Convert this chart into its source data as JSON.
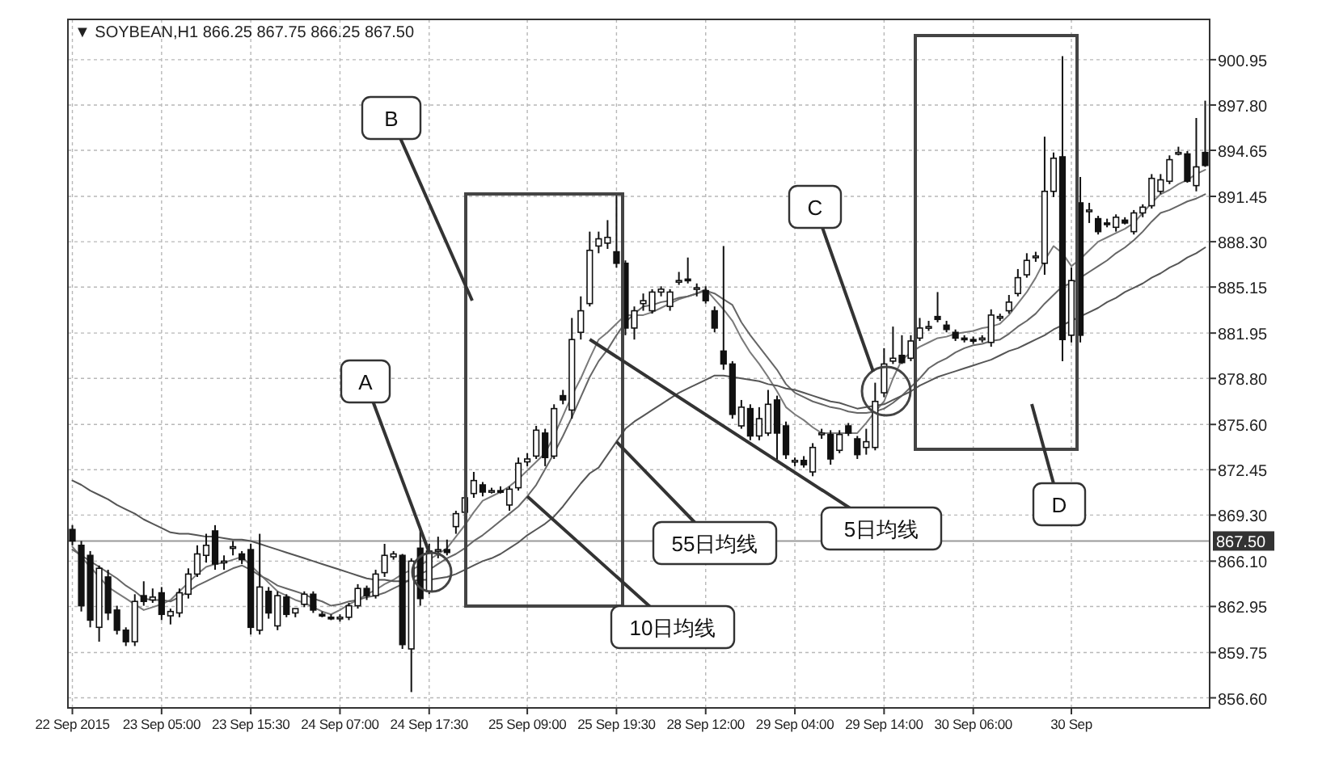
{
  "chart_data": {
    "type": "candlestick",
    "title": "▼ SOYBEAN,H1 866.25 867.75 866.25 867.50",
    "color": "#111111",
    "categories": [
      "22 Sep 2015",
      null,
      null,
      null,
      null,
      null,
      null,
      null,
      null,
      null,
      "23 Sep 05:00",
      null,
      null,
      null,
      null,
      null,
      null,
      null,
      null,
      null,
      "23 Sep 15:30",
      null,
      null,
      null,
      null,
      null,
      null,
      null,
      null,
      null,
      "24 Sep 07:00",
      null,
      null,
      null,
      null,
      null,
      null,
      null,
      null,
      null,
      "24 Sep 17:30",
      null,
      null,
      null,
      null,
      null,
      null,
      null,
      null,
      null,
      null,
      "25 Sep 09:00",
      null,
      null,
      null,
      null,
      null,
      null,
      null,
      null,
      null,
      "25 Sep 19:30",
      null,
      null,
      null,
      null,
      null,
      null,
      null,
      null,
      null,
      "28 Sep 12:00",
      null,
      null,
      null,
      null,
      null,
      null,
      null,
      null,
      null,
      "29 Sep 04:00",
      null,
      null,
      null,
      null,
      null,
      null,
      null,
      null,
      null,
      "29 Sep 14:00",
      null,
      null,
      null,
      null,
      null,
      null,
      null,
      null,
      null,
      "30 Sep 06:00",
      null,
      null,
      null,
      null,
      null,
      null,
      null,
      null,
      null,
      null,
      "30 Sep",
      null,
      null,
      null,
      null,
      null,
      null,
      null,
      null,
      null,
      null,
      null,
      null,
      null,
      null,
      null
    ],
    "ohlc": [
      [
        868.3,
        868.6,
        867.2,
        867.5
      ],
      [
        867.2,
        867.5,
        862.6,
        863.0
      ],
      [
        866.5,
        866.8,
        861.5,
        862.0
      ],
      [
        861.5,
        865.8,
        860.5,
        865.6
      ],
      [
        865.0,
        865.5,
        862.0,
        862.5
      ],
      [
        862.7,
        863.0,
        861.0,
        861.3
      ],
      [
        861.3,
        861.5,
        860.2,
        860.5
      ],
      [
        860.5,
        863.8,
        860.2,
        863.3
      ],
      [
        863.7,
        864.7,
        863.0,
        863.3
      ],
      [
        863.4,
        864.2,
        863.2,
        863.6
      ],
      [
        863.9,
        864.3,
        862.0,
        862.4
      ],
      [
        862.3,
        862.8,
        861.7,
        862.6
      ],
      [
        862.5,
        864.2,
        862.2,
        863.9
      ],
      [
        863.8,
        865.6,
        863.5,
        865.2
      ],
      [
        865.2,
        867.2,
        865.0,
        866.6
      ],
      [
        866.5,
        868.0,
        866.0,
        867.2
      ],
      [
        868.2,
        868.6,
        865.5,
        865.9
      ],
      [
        866.0,
        866.5,
        865.5,
        866.1
      ],
      [
        867.0,
        867.5,
        866.5,
        867.1
      ],
      [
        866.6,
        866.8,
        865.9,
        866.2
      ],
      [
        866.9,
        867.3,
        861.0,
        861.5
      ],
      [
        861.3,
        868.0,
        861.0,
        864.3
      ],
      [
        864.0,
        864.3,
        862.1,
        862.5
      ],
      [
        861.6,
        864.0,
        861.3,
        863.7
      ],
      [
        863.6,
        863.8,
        862.2,
        862.4
      ],
      [
        862.5,
        862.8,
        862.2,
        862.8
      ],
      [
        863.1,
        864.0,
        862.9,
        863.8
      ],
      [
        863.8,
        864.0,
        862.5,
        862.7
      ],
      [
        862.4,
        862.6,
        862.2,
        862.3
      ],
      [
        862.2,
        862.4,
        862.0,
        862.1
      ],
      [
        862.1,
        862.4,
        861.9,
        862.2
      ],
      [
        862.2,
        863.2,
        862.0,
        863.0
      ],
      [
        863.0,
        864.5,
        862.8,
        864.2
      ],
      [
        864.2,
        864.4,
        863.4,
        863.7
      ],
      [
        863.7,
        865.5,
        863.5,
        865.2
      ],
      [
        865.3,
        867.3,
        865.0,
        866.5
      ],
      [
        866.4,
        866.8,
        866.2,
        866.6
      ],
      [
        866.5,
        866.6,
        860.0,
        860.3
      ],
      [
        860.0,
        866.3,
        857.0,
        866.1
      ],
      [
        867.0,
        868.5,
        863.0,
        863.5
      ],
      [
        864.0,
        867.3,
        863.8,
        866.8
      ],
      [
        866.8,
        867.8,
        866.3,
        866.9
      ],
      [
        866.9,
        867.6,
        866.5,
        866.7
      ],
      [
        868.5,
        869.6,
        868.0,
        869.4
      ],
      [
        869.5,
        871.0,
        869.0,
        870.5
      ],
      [
        870.8,
        872.3,
        870.5,
        871.7
      ],
      [
        871.4,
        871.6,
        870.6,
        870.9
      ],
      [
        871.0,
        871.2,
        870.8,
        871.0
      ],
      [
        871.0,
        871.3,
        870.8,
        870.9
      ],
      [
        870.0,
        871.3,
        869.6,
        871.1
      ],
      [
        871.2,
        873.3,
        871.0,
        872.9
      ],
      [
        873.0,
        873.6,
        872.7,
        873.2
      ],
      [
        873.4,
        875.5,
        873.2,
        875.2
      ],
      [
        875.0,
        875.3,
        872.7,
        873.3
      ],
      [
        873.4,
        877.0,
        873.2,
        876.7
      ],
      [
        877.6,
        878.0,
        877.0,
        877.3
      ],
      [
        876.6,
        883.0,
        876.0,
        881.5
      ],
      [
        882.0,
        884.5,
        881.5,
        883.5
      ],
      [
        884.0,
        889.0,
        883.8,
        887.7
      ],
      [
        888.0,
        889.0,
        887.5,
        888.5
      ],
      [
        888.2,
        889.8,
        887.8,
        888.6
      ],
      [
        887.6,
        891.6,
        886.5,
        886.8
      ],
      [
        886.8,
        887.0,
        881.8,
        882.3
      ],
      [
        882.3,
        883.8,
        881.5,
        883.5
      ],
      [
        884.0,
        884.7,
        883.5,
        884.2
      ],
      [
        883.5,
        885.0,
        883.3,
        884.8
      ],
      [
        884.8,
        885.2,
        884.5,
        885.0
      ],
      [
        883.8,
        885.0,
        883.5,
        884.8
      ],
      [
        885.5,
        886.2,
        885.3,
        885.6
      ],
      [
        885.7,
        887.2,
        885.4,
        885.6
      ],
      [
        885.0,
        885.4,
        884.5,
        885.1
      ],
      [
        884.9,
        885.2,
        884.0,
        884.2
      ],
      [
        883.5,
        883.8,
        882.0,
        882.3
      ],
      [
        880.7,
        888.0,
        879.4,
        879.8
      ],
      [
        879.8,
        880.0,
        876.0,
        876.3
      ],
      [
        875.5,
        877.3,
        875.3,
        876.8
      ],
      [
        876.7,
        877.0,
        874.5,
        874.8
      ],
      [
        874.8,
        876.8,
        874.5,
        876.0
      ],
      [
        875.0,
        878.0,
        874.8,
        877.0
      ],
      [
        877.3,
        877.6,
        873.0,
        875.0
      ],
      [
        875.5,
        875.8,
        873.2,
        873.5
      ],
      [
        873.0,
        873.3,
        872.7,
        873.1
      ],
      [
        873.1,
        873.4,
        872.6,
        872.8
      ],
      [
        872.3,
        874.3,
        872.0,
        874.0
      ],
      [
        874.9,
        875.3,
        874.6,
        875.0
      ],
      [
        874.9,
        875.2,
        872.8,
        873.2
      ],
      [
        873.8,
        875.2,
        873.6,
        874.9
      ],
      [
        875.5,
        875.7,
        874.8,
        875.0
      ],
      [
        874.6,
        874.8,
        873.2,
        873.5
      ],
      [
        874.0,
        875.3,
        873.5,
        874.4
      ],
      [
        874.0,
        878.5,
        873.8,
        877.2
      ],
      [
        877.8,
        880.9,
        877.5,
        879.8
      ],
      [
        880.0,
        882.4,
        879.8,
        880.2
      ],
      [
        880.4,
        881.8,
        879.8,
        879.9
      ],
      [
        880.2,
        881.8,
        880.0,
        881.4
      ],
      [
        881.6,
        883.0,
        881.4,
        882.3
      ],
      [
        882.3,
        882.8,
        882.1,
        882.4
      ],
      [
        883.1,
        884.8,
        882.7,
        882.9
      ],
      [
        882.5,
        882.8,
        882.0,
        882.2
      ],
      [
        882.0,
        882.2,
        881.4,
        881.6
      ],
      [
        881.6,
        881.8,
        881.3,
        881.5
      ],
      [
        881.5,
        881.7,
        881.2,
        881.4
      ],
      [
        881.5,
        881.8,
        881.3,
        881.6
      ],
      [
        881.3,
        883.6,
        881.0,
        883.2
      ],
      [
        883.0,
        883.3,
        882.8,
        883.1
      ],
      [
        883.5,
        884.6,
        883.3,
        884.1
      ],
      [
        884.7,
        886.4,
        884.5,
        885.8
      ],
      [
        886.0,
        887.5,
        885.8,
        887.0
      ],
      [
        887.2,
        887.6,
        886.9,
        887.3
      ],
      [
        886.8,
        895.6,
        886.0,
        891.8
      ],
      [
        891.8,
        894.5,
        891.4,
        894.1
      ],
      [
        894.2,
        901.2,
        880.0,
        881.5
      ],
      [
        881.8,
        886.5,
        881.3,
        885.6
      ],
      [
        891.0,
        892.8,
        881.3,
        881.8
      ],
      [
        890.5,
        891.0,
        889.6,
        890.5
      ],
      [
        889.9,
        890.1,
        888.8,
        889.0
      ],
      [
        889.6,
        889.9,
        889.3,
        889.5
      ],
      [
        889.3,
        890.2,
        889.0,
        890.0
      ],
      [
        889.8,
        890.0,
        889.5,
        889.6
      ],
      [
        889.0,
        890.5,
        888.8,
        890.3
      ],
      [
        890.3,
        890.9,
        890.0,
        890.7
      ],
      [
        890.8,
        893.0,
        890.6,
        892.7
      ],
      [
        891.8,
        893.0,
        891.6,
        892.6
      ],
      [
        892.5,
        894.3,
        892.3,
        894.0
      ],
      [
        894.5,
        894.9,
        894.3,
        894.5
      ],
      [
        894.4,
        894.6,
        892.4,
        892.5
      ],
      [
        892.2,
        896.9,
        891.8,
        893.5
      ],
      [
        894.5,
        898.1,
        893.5,
        893.6
      ]
    ],
    "series": [
      {
        "type": "line",
        "color": "#7a7a7a",
        "values": [
          867.1,
          866.4,
          865.7,
          865.0,
          864.3,
          863.9,
          863.5,
          863.1,
          862.7,
          862.9,
          863.1,
          863.4,
          864.0,
          864.6,
          865.2,
          865.7,
          865.9,
          866.0,
          866.2,
          866.4,
          865.8,
          865.2,
          864.6,
          864.0,
          863.7,
          863.4,
          863.2,
          862.9,
          862.6,
          862.4,
          862.7,
          863.1,
          863.4,
          863.8,
          864.1,
          864.5,
          864.8,
          865.2,
          865.5,
          865.8,
          866.2,
          866.6,
          867.0,
          867.8,
          868.6,
          869.5,
          870.3,
          870.6,
          870.9,
          871.3,
          871.8,
          872.4,
          873.0,
          873.6,
          874.8,
          876.2,
          877.6,
          878.8,
          880.2,
          881.5,
          882.0,
          882.6,
          883.2,
          883.2,
          883.2,
          883.4,
          883.7,
          884.0,
          884.3,
          884.5,
          884.7,
          885.0,
          884.3,
          883.6,
          882.8,
          881.6,
          880.6,
          879.8,
          878.9,
          877.9,
          876.8,
          876.3,
          875.9,
          875.4,
          875.0,
          875.0,
          875.0,
          875.0,
          875.0,
          875.7,
          876.5,
          877.2,
          878.8,
          880.1,
          880.6,
          881.0,
          881.3,
          881.6,
          881.7,
          881.9,
          882.0,
          882.1,
          882.3,
          882.4,
          882.6,
          883.2,
          884.0,
          884.8,
          885.8,
          887.0,
          888.0,
          887.5,
          886.6,
          887.1,
          887.7,
          888.3,
          888.6,
          888.9,
          889.2,
          889.6,
          890.3,
          891.0,
          891.6,
          891.9,
          892.3,
          892.6,
          893.0,
          893.3
        ]
      },
      {
        "type": "line",
        "color": "#666666",
        "values": [
          866.9,
          866.5,
          866.1,
          865.7,
          865.3,
          864.9,
          864.4,
          864.0,
          863.5,
          863.4,
          863.4,
          863.3,
          863.6,
          864.0,
          864.4,
          864.7,
          865.0,
          865.3,
          865.6,
          865.8,
          865.5,
          865.1,
          864.8,
          864.4,
          864.2,
          864.0,
          863.8,
          863.5,
          863.3,
          863.0,
          863.1,
          863.3,
          863.4,
          863.6,
          863.7,
          863.9,
          864.2,
          864.5,
          864.9,
          865.2,
          865.5,
          865.9,
          866.3,
          866.6,
          867.0,
          867.5,
          867.9,
          868.4,
          868.9,
          869.4,
          869.9,
          870.6,
          871.4,
          872.5,
          873.6,
          874.8,
          876.1,
          877.5,
          878.9,
          880.0,
          880.8,
          881.8,
          882.7,
          883.3,
          883.8,
          883.9,
          884.1,
          884.2,
          884.4,
          884.5,
          884.7,
          884.9,
          884.7,
          884.3,
          883.9,
          882.7,
          881.8,
          881.0,
          880.2,
          879.4,
          878.4,
          877.8,
          877.5,
          877.2,
          877.0,
          876.8,
          876.7,
          876.5,
          876.4,
          876.4,
          876.5,
          876.7,
          877.1,
          877.6,
          878.2,
          878.8,
          879.5,
          879.9,
          880.2,
          880.6,
          880.9,
          881.1,
          881.2,
          881.4,
          881.5,
          881.9,
          882.4,
          882.8,
          883.3,
          884.0,
          884.6,
          885.2,
          885.4,
          885.8,
          886.2,
          886.6,
          887.0,
          887.5,
          887.9,
          888.4,
          889.0,
          889.7,
          890.3,
          890.5,
          890.8,
          891.1,
          891.3,
          891.6
        ]
      },
      {
        "type": "line",
        "color": "#555555",
        "values": [
          871.7,
          871.4,
          871.0,
          870.7,
          870.4,
          870.0,
          869.7,
          869.4,
          869.0,
          868.7,
          868.4,
          868.1,
          868.0,
          868.0,
          867.9,
          867.8,
          867.8,
          867.7,
          867.6,
          867.6,
          867.5,
          867.3,
          867.1,
          866.9,
          866.7,
          866.5,
          866.3,
          866.1,
          865.9,
          865.7,
          865.5,
          865.3,
          865.1,
          864.9,
          864.8,
          864.8,
          864.7,
          864.7,
          864.7,
          864.8,
          864.8,
          864.9,
          865.0,
          865.2,
          865.5,
          865.8,
          866.1,
          866.3,
          866.6,
          867.0,
          867.4,
          867.9,
          868.3,
          868.7,
          869.2,
          869.9,
          870.7,
          871.5,
          872.2,
          872.6,
          873.5,
          874.4,
          875.3,
          875.8,
          876.2,
          876.6,
          877.0,
          877.4,
          877.8,
          878.1,
          878.4,
          878.7,
          879.0,
          879.0,
          878.9,
          878.8,
          878.7,
          878.6,
          878.4,
          878.3,
          878.1,
          878.0,
          877.8,
          877.6,
          877.4,
          877.2,
          877.1,
          876.9,
          876.7,
          876.8,
          876.9,
          877.0,
          877.3,
          877.6,
          877.9,
          878.3,
          878.6,
          878.9,
          879.1,
          879.3,
          879.5,
          879.7,
          879.9,
          880.1,
          880.4,
          880.7,
          880.9,
          881.2,
          881.5,
          881.8,
          882.2,
          882.5,
          882.8,
          883.1,
          883.4,
          883.7,
          884.1,
          884.4,
          884.8,
          885.1,
          885.4,
          885.8,
          886.1,
          886.5,
          886.8,
          887.2,
          887.5,
          887.9
        ]
      }
    ],
    "ylim": [
      855.9,
      903.75
    ],
    "yticks": [
      {
        "value": 900.95,
        "label": "900.95"
      },
      {
        "value": 897.8,
        "label": "897.80"
      },
      {
        "value": 894.65,
        "label": "894.65"
      },
      {
        "value": 891.45,
        "label": "891.45"
      },
      {
        "value": 888.3,
        "label": "888.30"
      },
      {
        "value": 885.15,
        "label": "885.15"
      },
      {
        "value": 881.95,
        "label": "881.95"
      },
      {
        "value": 878.8,
        "label": "878.80"
      },
      {
        "value": 875.6,
        "label": "875.60"
      },
      {
        "value": 872.45,
        "label": "872.45"
      },
      {
        "value": 869.3,
        "label": "869.30"
      },
      {
        "value": 866.1,
        "label": "866.10"
      },
      {
        "value": 862.95,
        "label": "862.95"
      },
      {
        "value": 859.75,
        "label": "859.75"
      },
      {
        "value": 856.6,
        "label": "856.60"
      }
    ],
    "ref_lines": [
      {
        "axis": "y",
        "value": 867.5,
        "label": "867.50",
        "color": "#9a9a9a"
      }
    ],
    "grid": true,
    "annotations": [
      {
        "text": "A",
        "x": "24 Sep 17:30",
        "y": 866.7
      },
      "B",
      "C",
      "D",
      "5日均线",
      {
        "text": "10日均线",
        "x": "25 Sep 09:00",
        "y": 870.6
      },
      {
        "text": "55日均线",
        "x": "25 Sep 19:30",
        "y": 874.4
      }
    ]
  }
}
